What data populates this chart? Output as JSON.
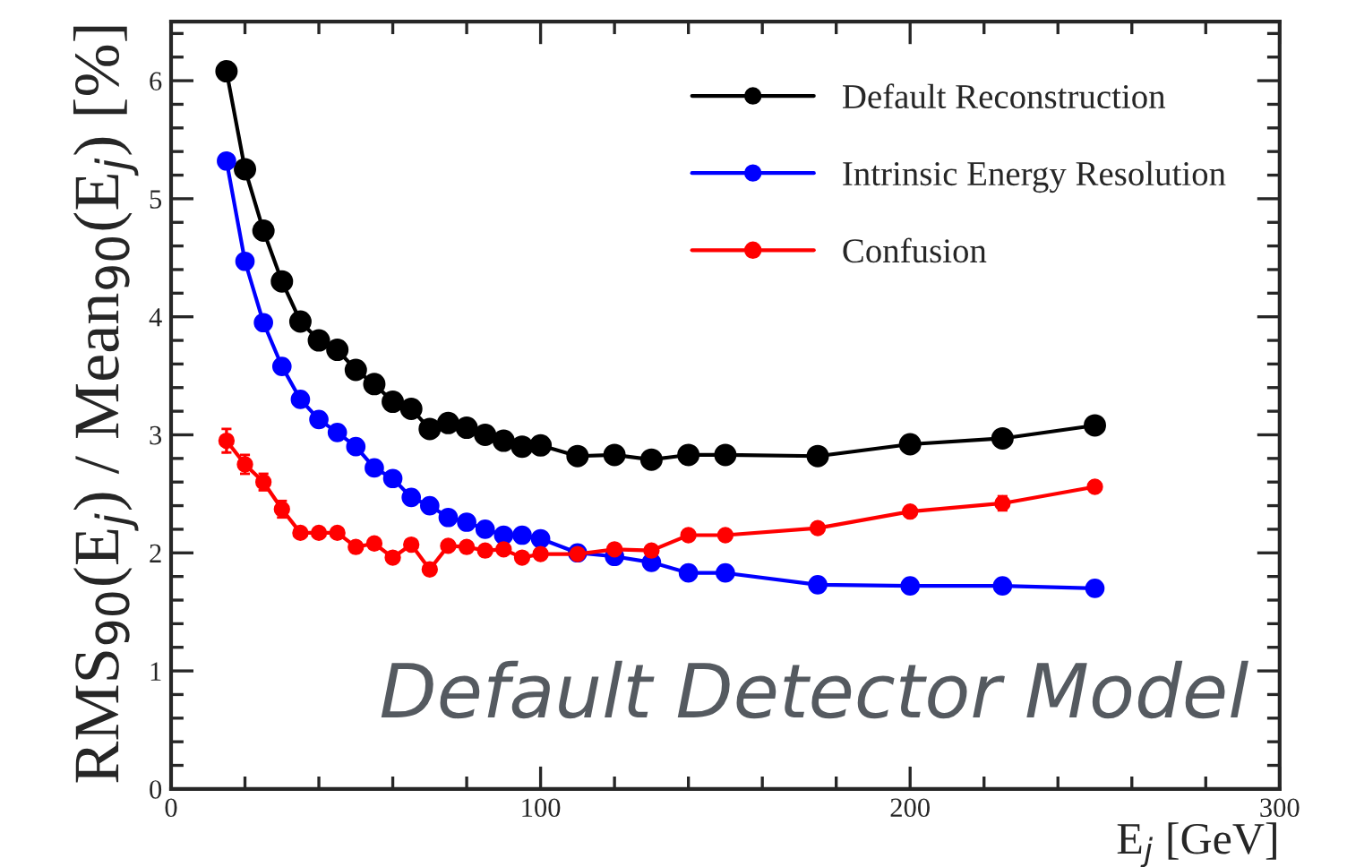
{
  "chart_data": {
    "type": "line",
    "xlabel": "E$_{j}$ [GeV]",
    "ylabel": "RMS$_{90}$(E$_{j}$) / Mean$_{90}$(E$_{j}$) [%]",
    "x": [
      15,
      20,
      25,
      30,
      35,
      40,
      45,
      50,
      55,
      60,
      65,
      70,
      75,
      80,
      85,
      90,
      95,
      100,
      110,
      120,
      130,
      140,
      150,
      175,
      200,
      225,
      250
    ],
    "series": [
      {
        "name": "Default Reconstruction",
        "color": "#000000",
        "values": [
          6.08,
          5.25,
          4.73,
          4.3,
          3.96,
          3.8,
          3.72,
          3.55,
          3.43,
          3.28,
          3.22,
          3.05,
          3.1,
          3.06,
          3.0,
          2.95,
          2.9,
          2.91,
          2.82,
          2.83,
          2.79,
          2.83,
          2.83,
          2.82,
          2.92,
          2.97,
          3.08
        ],
        "errors": [
          0.05,
          null,
          null,
          null,
          null,
          null,
          null,
          null,
          null,
          null,
          null,
          null,
          null,
          null,
          null,
          null,
          null,
          null,
          null,
          null,
          null,
          null,
          null,
          null,
          null,
          null,
          null
        ]
      },
      {
        "name": "Intrinsic Energy Resolution",
        "color": "#0000ff",
        "values": [
          5.32,
          4.47,
          3.95,
          3.58,
          3.3,
          3.13,
          3.02,
          2.9,
          2.72,
          2.63,
          2.47,
          2.4,
          2.3,
          2.26,
          2.2,
          2.15,
          2.15,
          2.12,
          2.0,
          1.97,
          1.92,
          1.83,
          1.83,
          1.73,
          1.72,
          1.72,
          1.7
        ]
      },
      {
        "name": "Confusion",
        "color": "#ff0000",
        "values": [
          2.95,
          2.75,
          2.6,
          2.37,
          2.17,
          2.17,
          2.17,
          2.05,
          2.08,
          1.96,
          2.07,
          1.86,
          2.06,
          2.05,
          2.02,
          2.03,
          1.96,
          1.99,
          1.99,
          2.03,
          2.02,
          2.15,
          2.15,
          2.21,
          2.35,
          2.42,
          2.56
        ],
        "errors": [
          0.1,
          0.08,
          0.07,
          0.07,
          null,
          null,
          null,
          null,
          null,
          null,
          null,
          null,
          null,
          null,
          null,
          null,
          null,
          null,
          null,
          null,
          null,
          null,
          null,
          null,
          null,
          0.06,
          null
        ]
      }
    ],
    "xlim": [
      0,
      300
    ],
    "xticks": [
      0,
      100,
      200,
      300
    ],
    "ylim": [
      0,
      6.5
    ],
    "yticks": [
      0,
      1,
      2,
      3,
      4,
      5,
      6
    ],
    "marker": "circle",
    "legend": "top right",
    "grid": false,
    "annotations": [
      "Default Detector Model"
    ]
  }
}
